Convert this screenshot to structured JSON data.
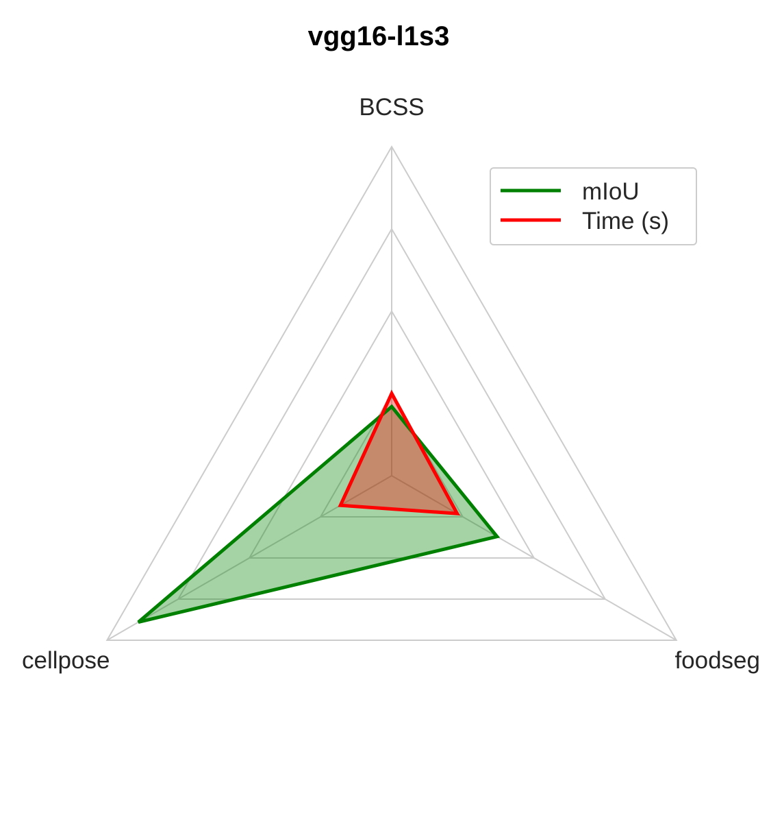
{
  "chart_data": {
    "type": "radar",
    "title": "vgg16-l1s3",
    "axes": [
      "BCSS",
      "foodseg",
      "cellpose"
    ],
    "rmax": 1.0,
    "grid_levels": [
      0.25,
      0.5,
      0.75,
      1.0
    ],
    "grid": true,
    "legend_position": "top-right",
    "series": [
      {
        "name": "mIoU",
        "color": "#008000",
        "fill": "#008000",
        "values": [
          0.21,
          0.37,
          0.89
        ]
      },
      {
        "name": "Time (s)",
        "color": "#ff0000",
        "fill": "#ff0000",
        "values": [
          0.25,
          0.23,
          0.18
        ]
      }
    ]
  }
}
